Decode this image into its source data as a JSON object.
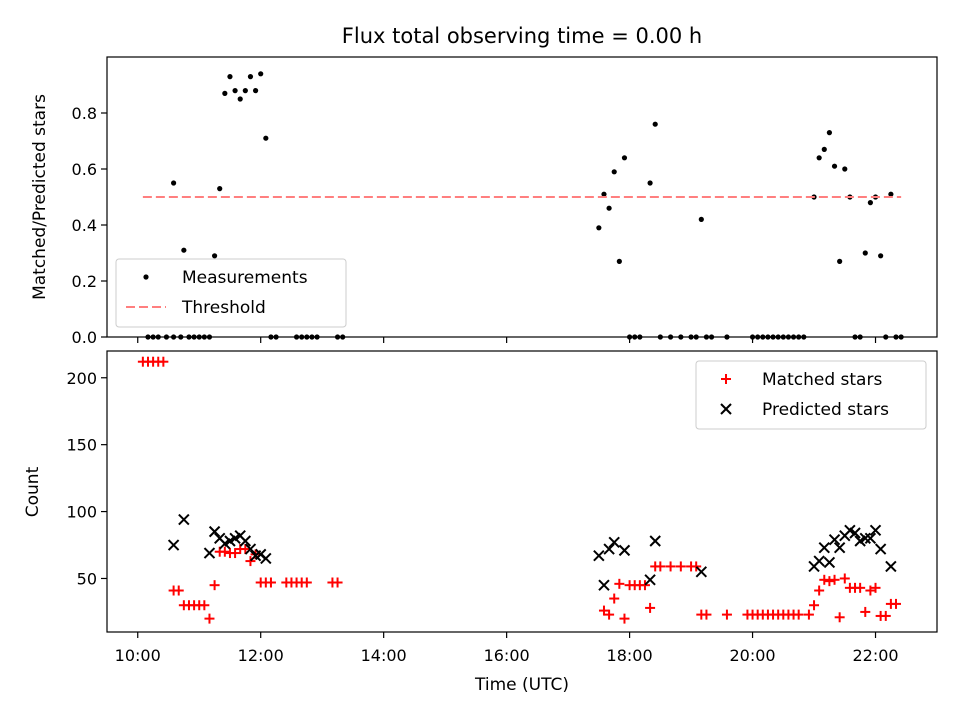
{
  "chart_data": [
    {
      "type": "scatter",
      "title": "Flux total observing time = 0.00 h",
      "xlabel": "",
      "ylabel": "Matched/Predicted stars",
      "xlim": [
        "09:30",
        "23:00"
      ],
      "ylim": [
        0,
        1.0
      ],
      "x_ticks": [],
      "y_ticks": [
        "0.0",
        "0.2",
        "0.4",
        "0.6",
        "0.8"
      ],
      "legend": {
        "position": "lower-left",
        "entries": [
          "Measurements",
          "Threshold"
        ]
      },
      "series": [
        {
          "name": "Measurements",
          "marker": "dot",
          "color": "#000000",
          "points": [
            [
              "10:10",
              0
            ],
            [
              "10:15",
              0
            ],
            [
              "10:20",
              0
            ],
            [
              "10:28",
              0
            ],
            [
              "10:35",
              0
            ],
            [
              "10:42",
              0
            ],
            [
              "10:50",
              0
            ],
            [
              "10:55",
              0
            ],
            [
              "10:35",
              0.55
            ],
            [
              "10:45",
              0.31
            ],
            [
              "11:00",
              0
            ],
            [
              "11:05",
              0
            ],
            [
              "11:10",
              0
            ],
            [
              "11:15",
              0.29
            ],
            [
              "11:20",
              0.53
            ],
            [
              "11:25",
              0.87
            ],
            [
              "11:30",
              0.93
            ],
            [
              "11:35",
              0.88
            ],
            [
              "11:40",
              0.85
            ],
            [
              "11:45",
              0.88
            ],
            [
              "11:50",
              0.93
            ],
            [
              "11:55",
              0.88
            ],
            [
              "12:00",
              0.94
            ],
            [
              "12:05",
              0.71
            ],
            [
              "12:10",
              0
            ],
            [
              "12:15",
              0
            ],
            [
              "12:35",
              0
            ],
            [
              "12:40",
              0
            ],
            [
              "12:45",
              0
            ],
            [
              "12:50",
              0
            ],
            [
              "12:55",
              0
            ],
            [
              "13:15",
              0
            ],
            [
              "13:20",
              0
            ],
            [
              "17:30",
              0.39
            ],
            [
              "17:35",
              0.51
            ],
            [
              "17:40",
              0.46
            ],
            [
              "17:45",
              0.59
            ],
            [
              "17:50",
              0.27
            ],
            [
              "17:55",
              0.64
            ],
            [
              "18:00",
              0
            ],
            [
              "18:05",
              0
            ],
            [
              "18:10",
              0
            ],
            [
              "18:20",
              0.55
            ],
            [
              "18:25",
              0.76
            ],
            [
              "18:30",
              0
            ],
            [
              "18:40",
              0
            ],
            [
              "18:50",
              0
            ],
            [
              "19:00",
              0
            ],
            [
              "19:05",
              0
            ],
            [
              "19:10",
              0.42
            ],
            [
              "19:15",
              0
            ],
            [
              "19:20",
              0
            ],
            [
              "19:35",
              0
            ],
            [
              "20:00",
              0
            ],
            [
              "20:05",
              0
            ],
            [
              "20:10",
              0
            ],
            [
              "20:15",
              0
            ],
            [
              "20:20",
              0
            ],
            [
              "20:25",
              0
            ],
            [
              "20:30",
              0
            ],
            [
              "20:35",
              0
            ],
            [
              "20:40",
              0
            ],
            [
              "20:45",
              0
            ],
            [
              "20:50",
              0
            ],
            [
              "21:00",
              0.5
            ],
            [
              "21:05",
              0.64
            ],
            [
              "21:10",
              0.67
            ],
            [
              "21:15",
              0.73
            ],
            [
              "21:20",
              0.61
            ],
            [
              "21:25",
              0.27
            ],
            [
              "21:30",
              0.6
            ],
            [
              "21:35",
              0.5
            ],
            [
              "21:40",
              0
            ],
            [
              "21:45",
              0
            ],
            [
              "21:50",
              0.3
            ],
            [
              "21:55",
              0.48
            ],
            [
              "22:00",
              0.5
            ],
            [
              "22:05",
              0.29
            ],
            [
              "22:10",
              0
            ],
            [
              "22:15",
              0.51
            ],
            [
              "22:20",
              0
            ],
            [
              "22:25",
              0
            ]
          ]
        },
        {
          "name": "Threshold",
          "style": "dashed",
          "color": "#ff7f7f",
          "points": [
            [
              "10:05",
              0.5
            ],
            [
              "22:25",
              0.5
            ]
          ]
        }
      ]
    },
    {
      "type": "scatter",
      "title": "",
      "xlabel": "Time (UTC)",
      "ylabel": "Count",
      "xlim": [
        "09:30",
        "23:00"
      ],
      "ylim": [
        10,
        220
      ],
      "x_ticks": [
        "10:00",
        "12:00",
        "14:00",
        "16:00",
        "18:00",
        "20:00",
        "22:00"
      ],
      "y_ticks": [
        "50",
        "100",
        "150",
        "200"
      ],
      "legend": {
        "position": "upper-right",
        "entries": [
          "Matched stars",
          "Predicted stars"
        ]
      },
      "series": [
        {
          "name": "Matched stars",
          "marker": "plus",
          "color": "#ff0000",
          "points": [
            [
              "10:05",
              212
            ],
            [
              "10:10",
              212
            ],
            [
              "10:15",
              212
            ],
            [
              "10:20",
              212
            ],
            [
              "10:25",
              212
            ],
            [
              "10:35",
              41
            ],
            [
              "10:40",
              41
            ],
            [
              "10:45",
              30
            ],
            [
              "10:50",
              30
            ],
            [
              "10:55",
              30
            ],
            [
              "11:00",
              30
            ],
            [
              "11:05",
              30
            ],
            [
              "11:10",
              20
            ],
            [
              "11:15",
              45
            ],
            [
              "11:20",
              70
            ],
            [
              "11:25",
              70
            ],
            [
              "11:30",
              69
            ],
            [
              "11:35",
              69
            ],
            [
              "11:40",
              72
            ],
            [
              "11:45",
              72
            ],
            [
              "11:50",
              63
            ],
            [
              "11:55",
              68
            ],
            [
              "12:00",
              47
            ],
            [
              "12:05",
              47
            ],
            [
              "12:10",
              47
            ],
            [
              "12:25",
              47
            ],
            [
              "12:30",
              47
            ],
            [
              "12:35",
              47
            ],
            [
              "12:40",
              47
            ],
            [
              "12:45",
              47
            ],
            [
              "13:10",
              47
            ],
            [
              "13:15",
              47
            ],
            [
              "17:35",
              26
            ],
            [
              "17:40",
              23
            ],
            [
              "17:45",
              35
            ],
            [
              "17:50",
              46
            ],
            [
              "17:55",
              20
            ],
            [
              "18:00",
              45
            ],
            [
              "18:05",
              45
            ],
            [
              "18:10",
              45
            ],
            [
              "18:15",
              45
            ],
            [
              "18:20",
              28
            ],
            [
              "18:25",
              59
            ],
            [
              "18:30",
              59
            ],
            [
              "18:40",
              59
            ],
            [
              "18:50",
              59
            ],
            [
              "19:00",
              59
            ],
            [
              "19:05",
              59
            ],
            [
              "19:10",
              23
            ],
            [
              "19:15",
              23
            ],
            [
              "19:35",
              23
            ],
            [
              "19:55",
              23
            ],
            [
              "20:00",
              23
            ],
            [
              "20:05",
              23
            ],
            [
              "20:10",
              23
            ],
            [
              "20:15",
              23
            ],
            [
              "20:20",
              23
            ],
            [
              "20:25",
              23
            ],
            [
              "20:30",
              23
            ],
            [
              "20:35",
              23
            ],
            [
              "20:40",
              23
            ],
            [
              "20:45",
              23
            ],
            [
              "20:55",
              23
            ],
            [
              "21:00",
              30
            ],
            [
              "21:05",
              41
            ],
            [
              "21:10",
              49
            ],
            [
              "21:15",
              48
            ],
            [
              "21:20",
              49
            ],
            [
              "21:25",
              21
            ],
            [
              "21:30",
              50
            ],
            [
              "21:35",
              43
            ],
            [
              "21:40",
              43
            ],
            [
              "21:45",
              43
            ],
            [
              "21:50",
              25
            ],
            [
              "21:55",
              41
            ],
            [
              "22:00",
              43
            ],
            [
              "22:05",
              22
            ],
            [
              "22:10",
              22
            ],
            [
              "22:15",
              31
            ],
            [
              "22:20",
              31
            ]
          ]
        },
        {
          "name": "Predicted stars",
          "marker": "x",
          "color": "#000000",
          "points": [
            [
              "10:35",
              75
            ],
            [
              "10:45",
              94
            ],
            [
              "11:10",
              69
            ],
            [
              "11:15",
              85
            ],
            [
              "11:20",
              80
            ],
            [
              "11:25",
              76
            ],
            [
              "11:30",
              78
            ],
            [
              "11:35",
              80
            ],
            [
              "11:40",
              82
            ],
            [
              "11:45",
              78
            ],
            [
              "11:50",
              72
            ],
            [
              "11:55",
              67
            ],
            [
              "12:00",
              68
            ],
            [
              "12:05",
              65
            ],
            [
              "17:30",
              67
            ],
            [
              "17:35",
              45
            ],
            [
              "17:40",
              72
            ],
            [
              "17:45",
              77
            ],
            [
              "17:55",
              71
            ],
            [
              "18:20",
              49
            ],
            [
              "18:25",
              78
            ],
            [
              "19:10",
              55
            ],
            [
              "21:00",
              59
            ],
            [
              "21:05",
              63
            ],
            [
              "21:10",
              73
            ],
            [
              "21:15",
              62
            ],
            [
              "21:20",
              79
            ],
            [
              "21:25",
              73
            ],
            [
              "21:30",
              82
            ],
            [
              "21:35",
              86
            ],
            [
              "21:40",
              84
            ],
            [
              "21:45",
              78
            ],
            [
              "21:50",
              80
            ],
            [
              "21:55",
              80
            ],
            [
              "22:00",
              86
            ],
            [
              "22:05",
              72
            ],
            [
              "22:15",
              59
            ]
          ]
        }
      ]
    }
  ]
}
